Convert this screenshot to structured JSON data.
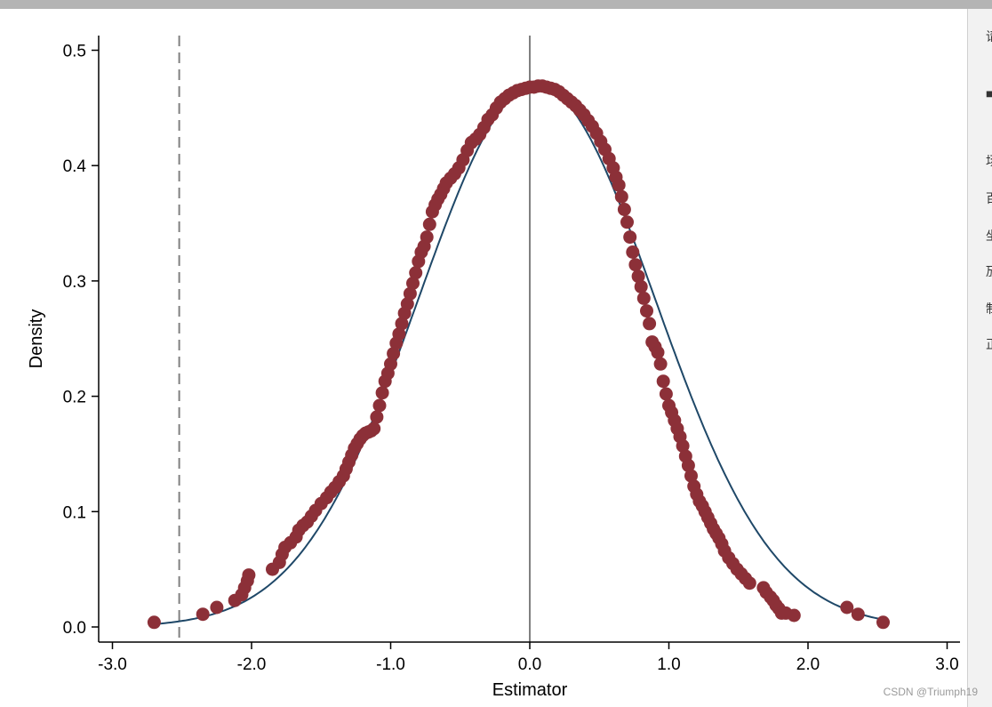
{
  "chart_data": {
    "type": "scatter",
    "title": "",
    "xlabel": "Estimator",
    "ylabel": "Density",
    "xlim": [
      -3.1,
      3.1
    ],
    "ylim": [
      -0.013,
      0.513
    ],
    "xticks": [
      -3.0,
      -2.0,
      -1.0,
      0.0,
      1.0,
      2.0,
      3.0
    ],
    "xtick_labels": [
      "-3.0",
      "-2.0",
      "-1.0",
      "0.0",
      "1.0",
      "2.0",
      "3.0"
    ],
    "yticks": [
      0.0,
      0.1,
      0.2,
      0.3,
      0.4,
      0.5
    ],
    "ytick_labels": [
      "0.0",
      "0.1",
      "0.2",
      "0.3",
      "0.4",
      "0.5"
    ],
    "grid": false,
    "legend": "none",
    "colors": {
      "points": "#8c3038",
      "curve": "#1f4868",
      "solid_vline": "#808080",
      "dashed_vline": "#808080"
    },
    "reference_lines": [
      {
        "x": 0.0,
        "style": "solid"
      },
      {
        "x": -2.52,
        "style": "dashed"
      }
    ],
    "normal_curve": {
      "mean": 0.05,
      "sd": 0.85,
      "x_range": [
        -2.72,
        2.55
      ]
    },
    "series": [
      {
        "type": "scatter",
        "x": [
          -2.7,
          -2.35,
          -2.25,
          -2.12,
          -2.07,
          -2.05,
          -2.03,
          -2.02,
          -1.85,
          -1.8,
          -1.78,
          -1.76,
          -1.72,
          -1.68,
          -1.66,
          -1.63,
          -1.6,
          -1.57,
          -1.54,
          -1.5,
          -1.46,
          -1.43,
          -1.4,
          -1.37,
          -1.34,
          -1.32,
          -1.3,
          -1.28,
          -1.26,
          -1.24,
          -1.22,
          -1.2,
          -1.18,
          -1.16,
          -1.14,
          -1.12,
          -1.1,
          -1.08,
          -1.06,
          -1.04,
          -1.02,
          -1.0,
          -0.98,
          -0.96,
          -0.94,
          -0.92,
          -0.9,
          -0.88,
          -0.86,
          -0.84,
          -0.82,
          -0.8,
          -0.78,
          -0.76,
          -0.74,
          -0.72,
          -0.7,
          -0.68,
          -0.66,
          -0.64,
          -0.62,
          -0.6,
          -0.57,
          -0.54,
          -0.51,
          -0.48,
          -0.45,
          -0.42,
          -0.39,
          -0.36,
          -0.33,
          -0.3,
          -0.27,
          -0.24,
          -0.21,
          -0.18,
          -0.15,
          -0.12,
          -0.09,
          -0.06,
          -0.03,
          0.0,
          0.03,
          0.06,
          0.09,
          0.12,
          0.15,
          0.18,
          0.21,
          0.24,
          0.27,
          0.3,
          0.33,
          0.36,
          0.39,
          0.42,
          0.45,
          0.48,
          0.51,
          0.54,
          0.57,
          0.6,
          0.62,
          0.64,
          0.66,
          0.68,
          0.7,
          0.72,
          0.74,
          0.76,
          0.78,
          0.8,
          0.82,
          0.84,
          0.86,
          0.88,
          0.9,
          0.92,
          0.94,
          0.96,
          0.98,
          1.0,
          1.02,
          1.04,
          1.06,
          1.08,
          1.1,
          1.12,
          1.14,
          1.16,
          1.18,
          1.2,
          1.22,
          1.24,
          1.26,
          1.28,
          1.3,
          1.32,
          1.34,
          1.36,
          1.38,
          1.4,
          1.43,
          1.46,
          1.49,
          1.52,
          1.55,
          1.58,
          1.68,
          1.7,
          1.73,
          1.75,
          1.77,
          1.79,
          1.81,
          1.84,
          1.9,
          2.28,
          2.36,
          2.54
        ],
        "y": [
          0.004,
          0.011,
          0.017,
          0.023,
          0.028,
          0.034,
          0.04,
          0.045,
          0.05,
          0.056,
          0.063,
          0.069,
          0.073,
          0.078,
          0.084,
          0.088,
          0.091,
          0.096,
          0.101,
          0.107,
          0.112,
          0.117,
          0.121,
          0.126,
          0.131,
          0.137,
          0.143,
          0.149,
          0.155,
          0.159,
          0.163,
          0.166,
          0.168,
          0.169,
          0.17,
          0.172,
          0.182,
          0.192,
          0.203,
          0.213,
          0.22,
          0.228,
          0.237,
          0.246,
          0.254,
          0.263,
          0.272,
          0.28,
          0.289,
          0.298,
          0.307,
          0.317,
          0.325,
          0.33,
          0.338,
          0.349,
          0.36,
          0.366,
          0.371,
          0.375,
          0.38,
          0.385,
          0.389,
          0.393,
          0.398,
          0.405,
          0.413,
          0.42,
          0.423,
          0.427,
          0.433,
          0.44,
          0.444,
          0.45,
          0.455,
          0.458,
          0.461,
          0.463,
          0.465,
          0.466,
          0.467,
          0.468,
          0.468,
          0.469,
          0.469,
          0.468,
          0.467,
          0.466,
          0.464,
          0.461,
          0.458,
          0.455,
          0.452,
          0.448,
          0.444,
          0.439,
          0.434,
          0.428,
          0.421,
          0.414,
          0.406,
          0.398,
          0.39,
          0.383,
          0.373,
          0.362,
          0.351,
          0.338,
          0.325,
          0.314,
          0.304,
          0.295,
          0.285,
          0.274,
          0.263,
          0.247,
          0.243,
          0.238,
          0.228,
          0.213,
          0.202,
          0.192,
          0.186,
          0.179,
          0.172,
          0.165,
          0.157,
          0.148,
          0.14,
          0.131,
          0.122,
          0.115,
          0.109,
          0.105,
          0.1,
          0.095,
          0.09,
          0.085,
          0.081,
          0.077,
          0.072,
          0.066,
          0.06,
          0.055,
          0.05,
          0.046,
          0.042,
          0.038,
          0.034,
          0.03,
          0.026,
          0.023,
          0.019,
          0.016,
          0.012,
          0.012,
          0.01,
          0.017,
          0.011,
          0.004
        ]
      }
    ]
  },
  "watermark": "CSDN @Triumph19",
  "right_panel": {
    "glyphs": [
      "请",
      "■",
      "场",
      "百",
      "坐",
      "劢",
      "制",
      "正"
    ]
  }
}
